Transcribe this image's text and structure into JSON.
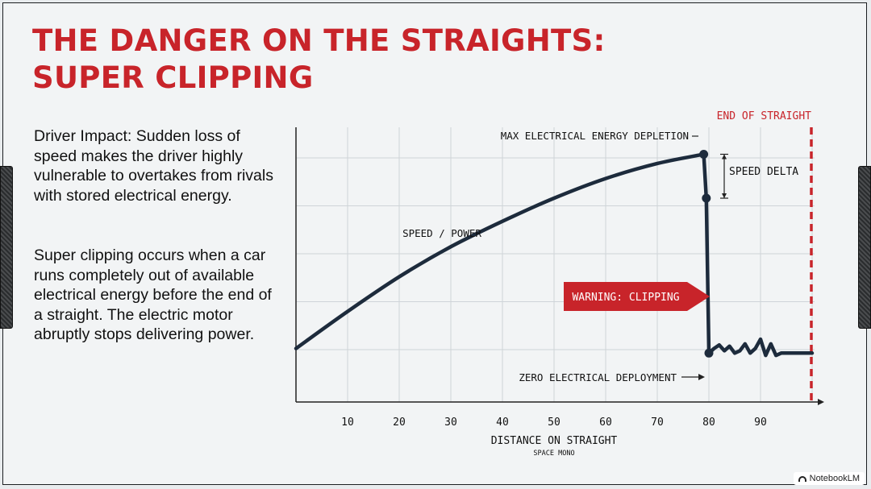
{
  "title": {
    "line1": "THE DANGER ON THE STRAIGHTS:",
    "line2": "SUPER CLIPPING"
  },
  "paragraphs": [
    "Driver Impact: Sudden loss of speed makes the driver highly vulnerable to overtakes from rivals with stored electrical energy.",
    "Super clipping occurs when a car runs completely out of available electrical energy before the end of a straight. The electric motor abruptly stops delivering power."
  ],
  "colors": {
    "accent": "#c8242a",
    "line": "#1d2b3c",
    "grid": "#cfd4d8",
    "background": "#f2f4f5"
  },
  "watermark": "NotebookLM",
  "chart_data": {
    "type": "line",
    "xlabel": "DISTANCE ON STRAIGHT",
    "xlabel_sub": "SPACE MONO",
    "ylabel": "",
    "xlim": [
      0,
      100
    ],
    "ylim": [
      0,
      100
    ],
    "x_ticks": [
      10,
      20,
      30,
      40,
      50,
      60,
      70,
      80,
      90
    ],
    "series": [
      {
        "name": "SPEED / POWER",
        "x": [
          0,
          10,
          20,
          30,
          40,
          50,
          60,
          70,
          79,
          79.5,
          80,
          81,
          82,
          83,
          84,
          85,
          86,
          87,
          88,
          89,
          90,
          91,
          92,
          93,
          94,
          96,
          100
        ],
        "y": [
          12,
          28,
          43,
          56,
          67,
          77,
          85.5,
          92,
          96,
          77,
          10,
          12,
          13.5,
          11,
          13,
          10,
          11,
          14,
          10,
          12,
          16,
          9,
          14,
          9,
          10,
          10,
          10
        ]
      }
    ],
    "vertical_line": {
      "x": 100,
      "label": "END OF STRAIGHT",
      "style": "dashed"
    },
    "annotations": [
      {
        "text": "MAX ELECTRICAL ENERGY DEPLETION",
        "x": 79,
        "y": 96
      },
      {
        "text": "SPEED DELTA",
        "x": 79,
        "y": [
          96,
          77
        ]
      },
      {
        "text": "WARNING: CLIPPING",
        "x": 79,
        "y": 38
      },
      {
        "text": "ZERO ELECTRICAL DEPLOYMENT",
        "x": 80,
        "y": 10
      },
      {
        "text": "SPEED / POWER",
        "x": 40,
        "y": 72
      }
    ],
    "points": [
      {
        "x": 79,
        "y": 96
      },
      {
        "x": 79.5,
        "y": 77
      },
      {
        "x": 80,
        "y": 10
      }
    ]
  }
}
